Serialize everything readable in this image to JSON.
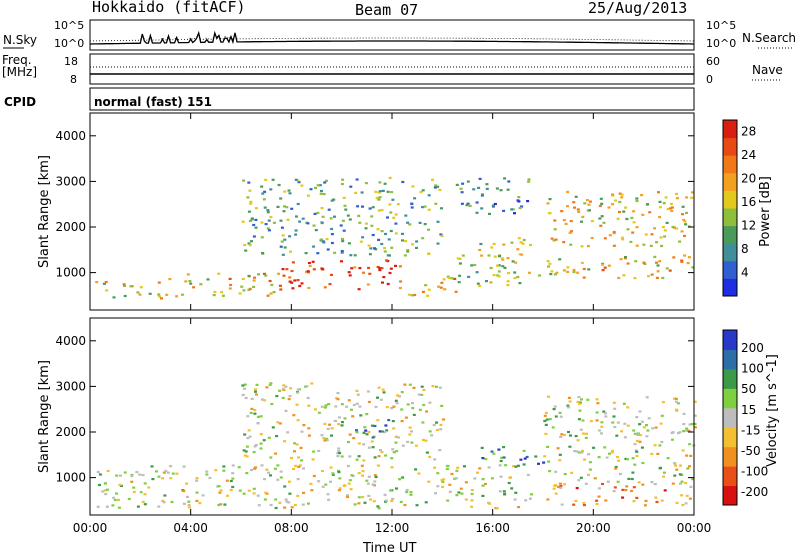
{
  "header": {
    "station": "Hokkaido (fitACF)",
    "beam": "Beam 07",
    "date": "25/Aug/2013"
  },
  "status_panel": {
    "nsky_label": "N.Sky",
    "nsearch_label": "N.Search",
    "noise_ticks": [
      "10^5",
      "10^0"
    ],
    "freq_label": "Freq.",
    "freq_unit": "[MHz]",
    "freq_ticks": [
      "18",
      "8"
    ],
    "nave_label": "Nave",
    "nave_ticks": [
      "60",
      "0"
    ],
    "cpid_label": "CPID",
    "cpid_value": "normal (fast) 151"
  },
  "chart_data": [
    {
      "type": "heatmap",
      "name": "Power",
      "ylabel": "Slant Range [km]",
      "xlabel": "Time UT",
      "x_ticks": [
        "00:00",
        "04:00",
        "08:00",
        "12:00",
        "16:00",
        "20:00",
        "00:00"
      ],
      "x_range_hours": [
        0,
        24
      ],
      "y_ticks": [
        1000,
        2000,
        3000,
        4000
      ],
      "y_range": [
        180,
        4500
      ],
      "colorbar": {
        "label": "Power [dB]",
        "ticks": [
          "4",
          "8",
          "12",
          "16",
          "20",
          "24",
          "28"
        ],
        "colors": [
          "#1f2ee0",
          "#2f5fd0",
          "#3e8f9a",
          "#4a9a5a",
          "#8fbf3a",
          "#e3c81e",
          "#f2a020",
          "#f07818",
          "#e84a14",
          "#d81e10"
        ]
      },
      "bands": [
        {
          "t0": 0.2,
          "t1": 3.0,
          "r0": 450,
          "r1": 850,
          "level": 0.55
        },
        {
          "t0": 3.0,
          "t1": 7.5,
          "r0": 500,
          "r1": 1000,
          "level": 0.6
        },
        {
          "t0": 7.5,
          "t1": 12.5,
          "r0": 650,
          "r1": 1300,
          "level": 0.85
        },
        {
          "t0": 12.5,
          "t1": 14.5,
          "r0": 500,
          "r1": 1000,
          "level": 0.65
        },
        {
          "t0": 14.5,
          "t1": 17.5,
          "r0": 700,
          "r1": 1800,
          "level": 0.45
        },
        {
          "t0": 17.8,
          "t1": 24.0,
          "r0": 900,
          "r1": 1400,
          "level": 0.6
        },
        {
          "t0": 6.0,
          "t1": 14.0,
          "r0": 1400,
          "r1": 3100,
          "level": 0.35
        },
        {
          "t0": 14.5,
          "t1": 17.5,
          "r0": 2300,
          "r1": 3100,
          "level": 0.25
        },
        {
          "t0": 18.0,
          "t1": 24.0,
          "r0": 1600,
          "r1": 2800,
          "level": 0.55
        }
      ]
    },
    {
      "type": "heatmap",
      "name": "Velocity",
      "ylabel": "Slant Range [km]",
      "xlabel": "Time UT",
      "x_ticks": [
        "00:00",
        "04:00",
        "08:00",
        "12:00",
        "16:00",
        "20:00",
        "00:00"
      ],
      "x_range_hours": [
        0,
        24
      ],
      "y_ticks": [
        1000,
        2000,
        3000,
        4000
      ],
      "y_range": [
        180,
        4500
      ],
      "colorbar": {
        "label": "Velocity [m s^-1]",
        "ticks": [
          "200",
          "100",
          "50",
          "15",
          "-15",
          "-50",
          "-100",
          "-200"
        ],
        "colors": [
          "#2838c8",
          "#2e6ea8",
          "#3a9a48",
          "#7ed040",
          "#bdbdbd",
          "#f2c030",
          "#f09020",
          "#e85018",
          "#d81010"
        ]
      },
      "bands": [
        {
          "t0": 0.2,
          "t1": 17.5,
          "r0": 350,
          "r1": 1300,
          "level": 0.5
        },
        {
          "t0": 6.0,
          "t1": 14.0,
          "r0": 1400,
          "r1": 3100,
          "level": 0.5
        },
        {
          "t0": 10.5,
          "t1": 12.0,
          "r0": 1900,
          "r1": 2300,
          "level": 0.1
        },
        {
          "t0": 15.5,
          "t1": 18.0,
          "r0": 1200,
          "r1": 1700,
          "level": 0.2
        },
        {
          "t0": 18.0,
          "t1": 24.0,
          "r0": 400,
          "r1": 900,
          "level": 0.7
        },
        {
          "t0": 18.0,
          "t1": 24.0,
          "r0": 900,
          "r1": 2800,
          "level": 0.5
        }
      ]
    }
  ]
}
